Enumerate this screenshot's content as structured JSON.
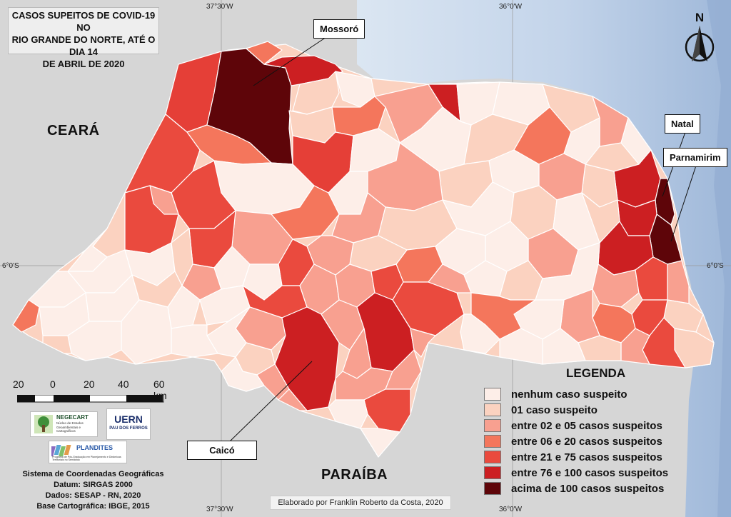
{
  "title": {
    "line1": "CASOS SUPEITOS DE COVID-19 NO",
    "line2": "RIO GRANDE DO NORTE, ATÉ O DIA 14",
    "line3": "DE ABRIL DE 2020"
  },
  "coords": {
    "top_left": "37°30'W",
    "top_right": "36°0'W",
    "bottom_left": "37°30'W",
    "bottom_right": "36°0'W",
    "left_lat": "6°0'S",
    "right_lat": "6°0'S"
  },
  "states": {
    "ceara": "CEARÁ",
    "paraiba": "PARAÍBA"
  },
  "callouts": {
    "mossoro": "Mossoró",
    "natal": "Natal",
    "parnamirim": "Parnamirim",
    "caico": "Caicó"
  },
  "north_letter": "N",
  "scale": {
    "labels": [
      "20",
      "0",
      "20",
      "40",
      "60 km"
    ]
  },
  "logos": {
    "negecart": "NEGECART",
    "negecart_sub": "Núcleo de Estudos Geoambientais e Cartográficos",
    "uern": "UERN",
    "uern_sub": "PAU DOS FERROS",
    "plandites": "PLANDITES",
    "plandites_sub": "Programa de Pós-Graduação em Planejamento e Dinâmicas Territoriais no Semiárido"
  },
  "legend": {
    "title": "LEGENDA",
    "items": [
      {
        "label": "nenhum caso suspeito",
        "color": "#fdeee8"
      },
      {
        "label": "01 caso suspeito",
        "color": "#fbd2c0"
      },
      {
        "label": "entre 02 e 05 casos suspeitos",
        "color": "#f8a090"
      },
      {
        "label": "entre 06 e 20 casos suspeitos",
        "color": "#f4765c"
      },
      {
        "label": "entre 21 e 75 casos suspeitos",
        "color": "#ea4a3e"
      },
      {
        "label": "entre 76 e 100 casos suspeitos",
        "color": "#cc1f22"
      },
      {
        "label": "acima de 100 casos suspeitos",
        "color": "#5e0509"
      }
    ]
  },
  "footer": {
    "line1": "Sistema de Coordenadas Geográficas",
    "line2": "Datum: SIRGAS 2000",
    "line3": "Dados: SESAP - RN, 2020",
    "line4": "Base Cartográfica: IBGE, 2015"
  },
  "credit": "Elaborado por Franklin Roberto da Costa, 2020"
}
